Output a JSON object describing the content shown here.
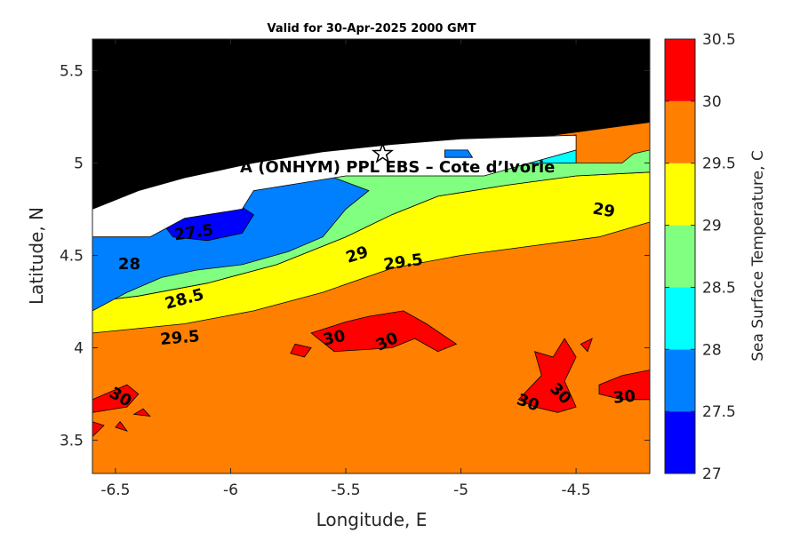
{
  "chart_data": {
    "type": "contour",
    "title": "Valid for 30-Apr-2025 2000 GMT",
    "xlabel": "Longitude, E",
    "ylabel": "Latitude, N",
    "xlim": [
      -6.6,
      -4.18
    ],
    "ylim": [
      3.32,
      5.67
    ],
    "xticks": [
      "-6.5",
      "-6",
      "-5.5",
      "-5",
      "-4.5"
    ],
    "yticks": [
      "3.5",
      "4",
      "4.5",
      "5",
      "5.5"
    ],
    "annotation": "A (ONHYM) PPL EBS  – Cote d’Ivorie",
    "star_marker": {
      "lon": -5.34,
      "lat": 5.05
    },
    "colorbar": {
      "label": "Sea Surface Temperature, C",
      "levels": [
        27,
        27.5,
        28,
        28.5,
        29,
        29.5,
        30,
        30.5
      ],
      "ticks": [
        "27",
        "27.5",
        "28",
        "28.5",
        "29",
        "29.5",
        "30",
        "30.5"
      ],
      "colors": [
        "#0000ff",
        "#0080ff",
        "#00ffff",
        "#80ff80",
        "#ffff00",
        "#ff8000",
        "#ff0000"
      ]
    },
    "contour_labels": [
      {
        "text": "27.5",
        "lon": -6.16,
        "lat": 4.62,
        "angle": -8
      },
      {
        "text": "28",
        "lon": -6.44,
        "lat": 4.45,
        "angle": 0
      },
      {
        "text": "28.5",
        "lon": -6.2,
        "lat": 4.26,
        "angle": -15
      },
      {
        "text": "29",
        "lon": -5.45,
        "lat": 4.5,
        "angle": -18
      },
      {
        "text": "29.5",
        "lon": -5.25,
        "lat": 4.46,
        "angle": -8
      },
      {
        "text": "29.5",
        "lon": -6.22,
        "lat": 4.05,
        "angle": -5
      },
      {
        "text": "29",
        "lon": -4.38,
        "lat": 4.74,
        "angle": 10
      },
      {
        "text": "30",
        "lon": -5.55,
        "lat": 4.05,
        "angle": -12
      },
      {
        "text": "30",
        "lon": -5.32,
        "lat": 4.03,
        "angle": -25
      },
      {
        "text": "30",
        "lon": -6.48,
        "lat": 3.73,
        "angle": 30
      },
      {
        "text": "30",
        "lon": -4.71,
        "lat": 3.7,
        "angle": 20
      },
      {
        "text": "30",
        "lon": -4.57,
        "lat": 3.75,
        "angle": 45
      },
      {
        "text": "30",
        "lon": -4.29,
        "lat": 3.73,
        "angle": -5
      }
    ],
    "regions": [
      {
        "value": "land",
        "fill": "#000000",
        "pts": [
          [
            -6.6,
            5.67
          ],
          [
            -4.18,
            5.67
          ],
          [
            -4.18,
            5.22
          ],
          [
            -4.6,
            5.15
          ],
          [
            -5.0,
            5.13
          ],
          [
            -5.3,
            5.1
          ],
          [
            -5.6,
            5.06
          ],
          [
            -5.9,
            5.0
          ],
          [
            -6.2,
            4.92
          ],
          [
            -6.4,
            4.85
          ],
          [
            -6.6,
            4.75
          ]
        ]
      },
      {
        "value": "29-29.5",
        "fill": "#ffff00",
        "pts": [
          [
            -6.6,
            4.08
          ],
          [
            -6.2,
            4.13
          ],
          [
            -5.9,
            4.2
          ],
          [
            -5.6,
            4.3
          ],
          [
            -5.3,
            4.43
          ],
          [
            -5.0,
            4.5
          ],
          [
            -4.7,
            4.55
          ],
          [
            -4.4,
            4.6
          ],
          [
            -4.18,
            4.68
          ],
          [
            -4.18,
            4.95
          ],
          [
            -4.5,
            4.93
          ],
          [
            -4.8,
            4.88
          ],
          [
            -5.1,
            4.82
          ],
          [
            -5.3,
            4.72
          ],
          [
            -5.5,
            4.6
          ],
          [
            -5.8,
            4.45
          ],
          [
            -6.1,
            4.35
          ],
          [
            -6.4,
            4.28
          ],
          [
            -6.6,
            4.25
          ]
        ]
      },
      {
        "value": "28.5-29",
        "fill": "#80ff80",
        "pts": [
          [
            -6.6,
            4.25
          ],
          [
            -6.4,
            4.28
          ],
          [
            -6.1,
            4.35
          ],
          [
            -5.8,
            4.45
          ],
          [
            -5.5,
            4.6
          ],
          [
            -5.3,
            4.72
          ],
          [
            -5.1,
            4.82
          ],
          [
            -4.8,
            4.88
          ],
          [
            -4.5,
            4.93
          ],
          [
            -4.18,
            4.95
          ],
          [
            -4.18,
            5.07
          ],
          [
            -4.25,
            5.05
          ],
          [
            -4.3,
            5.0
          ],
          [
            -4.5,
            5.0
          ],
          [
            -5.3,
            4.99
          ],
          [
            -5.8,
            4.95
          ],
          [
            -6.1,
            4.8
          ],
          [
            -6.4,
            4.6
          ],
          [
            -6.6,
            4.5
          ]
        ]
      },
      {
        "value": "28-28.5",
        "fill": "#00ffff",
        "pts": [
          [
            -6.6,
            4.5
          ],
          [
            -6.4,
            4.6
          ],
          [
            -6.1,
            4.8
          ],
          [
            -5.8,
            4.95
          ],
          [
            -5.3,
            4.99
          ],
          [
            -4.5,
            5.0
          ],
          [
            -4.5,
            5.15
          ],
          [
            -5.0,
            5.13
          ],
          [
            -5.3,
            5.1
          ],
          [
            -5.6,
            5.06
          ],
          [
            -5.9,
            5.0
          ],
          [
            -6.2,
            4.92
          ],
          [
            -6.4,
            4.85
          ],
          [
            -6.6,
            4.75
          ]
        ]
      },
      {
        "value": "27.5-28",
        "fill": "#0080ff",
        "pts": [
          [
            -6.6,
            4.2
          ],
          [
            -6.45,
            4.3
          ],
          [
            -6.3,
            4.38
          ],
          [
            -6.15,
            4.42
          ],
          [
            -5.95,
            4.45
          ],
          [
            -5.75,
            4.52
          ],
          [
            -5.6,
            4.6
          ],
          [
            -5.5,
            4.75
          ],
          [
            -5.4,
            4.85
          ],
          [
            -5.55,
            4.92
          ],
          [
            -5.8,
            4.95
          ],
          [
            -6.1,
            4.85
          ],
          [
            -6.35,
            4.72
          ],
          [
            -6.6,
            4.7
          ]
        ]
      },
      {
        "value": "27-27.5",
        "fill": "#0000ff",
        "pts": [
          [
            -6.25,
            4.6
          ],
          [
            -6.1,
            4.58
          ],
          [
            -5.95,
            4.62
          ],
          [
            -5.9,
            4.72
          ],
          [
            -6.0,
            4.8
          ],
          [
            -6.15,
            4.78
          ],
          [
            -6.3,
            4.68
          ]
        ]
      },
      {
        "value": "coastal-gap",
        "fill": "#ffffff",
        "pts": [
          [
            -6.6,
            4.6
          ],
          [
            -6.35,
            4.6
          ],
          [
            -6.2,
            4.7
          ],
          [
            -5.95,
            4.75
          ],
          [
            -5.9,
            4.85
          ],
          [
            -5.5,
            4.93
          ],
          [
            -5.2,
            4.93
          ],
          [
            -4.9,
            4.93
          ],
          [
            -4.7,
            5.0
          ],
          [
            -4.5,
            5.07
          ],
          [
            -4.5,
            5.15
          ],
          [
            -5.0,
            5.13
          ],
          [
            -5.3,
            5.1
          ],
          [
            -5.6,
            5.06
          ],
          [
            -5.9,
            5.0
          ],
          [
            -6.2,
            4.92
          ],
          [
            -6.4,
            4.85
          ],
          [
            -6.6,
            4.75
          ]
        ]
      },
      {
        "value": "27.5-28 patch",
        "fill": "#0080ff",
        "pts": [
          [
            -5.07,
            5.07
          ],
          [
            -4.97,
            5.07
          ],
          [
            -4.95,
            5.03
          ],
          [
            -5.07,
            5.03
          ]
        ]
      },
      {
        "value": ">30",
        "fill": "#ff0000",
        "pts": [
          [
            -5.65,
            4.08
          ],
          [
            -5.5,
            4.14
          ],
          [
            -5.4,
            4.17
          ],
          [
            -5.25,
            4.2
          ],
          [
            -5.15,
            4.13
          ],
          [
            -5.02,
            4.02
          ],
          [
            -5.1,
            3.98
          ],
          [
            -5.2,
            4.05
          ],
          [
            -5.3,
            4.0
          ],
          [
            -5.42,
            3.99
          ],
          [
            -5.55,
            3.98
          ]
        ]
      },
      {
        "value": ">30",
        "fill": "#ff0000",
        "pts": [
          [
            -6.6,
            3.72
          ],
          [
            -6.45,
            3.8
          ],
          [
            -6.4,
            3.75
          ],
          [
            -6.45,
            3.68
          ],
          [
            -6.6,
            3.65
          ]
        ]
      },
      {
        "value": ">30",
        "fill": "#ff0000",
        "pts": [
          [
            -4.75,
            3.72
          ],
          [
            -4.65,
            3.85
          ],
          [
            -4.68,
            3.98
          ],
          [
            -4.6,
            3.95
          ],
          [
            -4.55,
            4.05
          ],
          [
            -4.5,
            3.95
          ],
          [
            -4.55,
            3.82
          ],
          [
            -4.5,
            3.68
          ],
          [
            -4.58,
            3.65
          ],
          [
            -4.68,
            3.68
          ]
        ]
      },
      {
        "value": ">30",
        "fill": "#ff0000",
        "pts": [
          [
            -4.4,
            3.8
          ],
          [
            -4.3,
            3.85
          ],
          [
            -4.18,
            3.88
          ],
          [
            -4.18,
            3.72
          ],
          [
            -4.3,
            3.72
          ],
          [
            -4.4,
            3.75
          ]
        ]
      },
      {
        "value": ">30",
        "fill": "#ff0000",
        "pts": [
          [
            -5.72,
            4.02
          ],
          [
            -5.65,
            4.0
          ],
          [
            -5.68,
            3.95
          ],
          [
            -5.74,
            3.97
          ]
        ]
      },
      {
        "value": ">30",
        "fill": "#ff0000",
        "pts": [
          [
            -6.6,
            3.6
          ],
          [
            -6.55,
            3.58
          ],
          [
            -6.6,
            3.52
          ]
        ]
      },
      {
        "value": ">30",
        "fill": "#ff0000",
        "pts": [
          [
            -6.48,
            3.6
          ],
          [
            -6.45,
            3.55
          ],
          [
            -6.5,
            3.57
          ]
        ]
      },
      {
        "value": ">30",
        "fill": "#ff0000",
        "pts": [
          [
            -6.38,
            3.67
          ],
          [
            -6.35,
            3.63
          ],
          [
            -6.42,
            3.64
          ]
        ]
      },
      {
        "value": ">30",
        "fill": "#ff0000",
        "pts": [
          [
            -4.48,
            4.02
          ],
          [
            -4.43,
            4.05
          ],
          [
            -4.45,
            3.98
          ]
        ]
      }
    ]
  }
}
